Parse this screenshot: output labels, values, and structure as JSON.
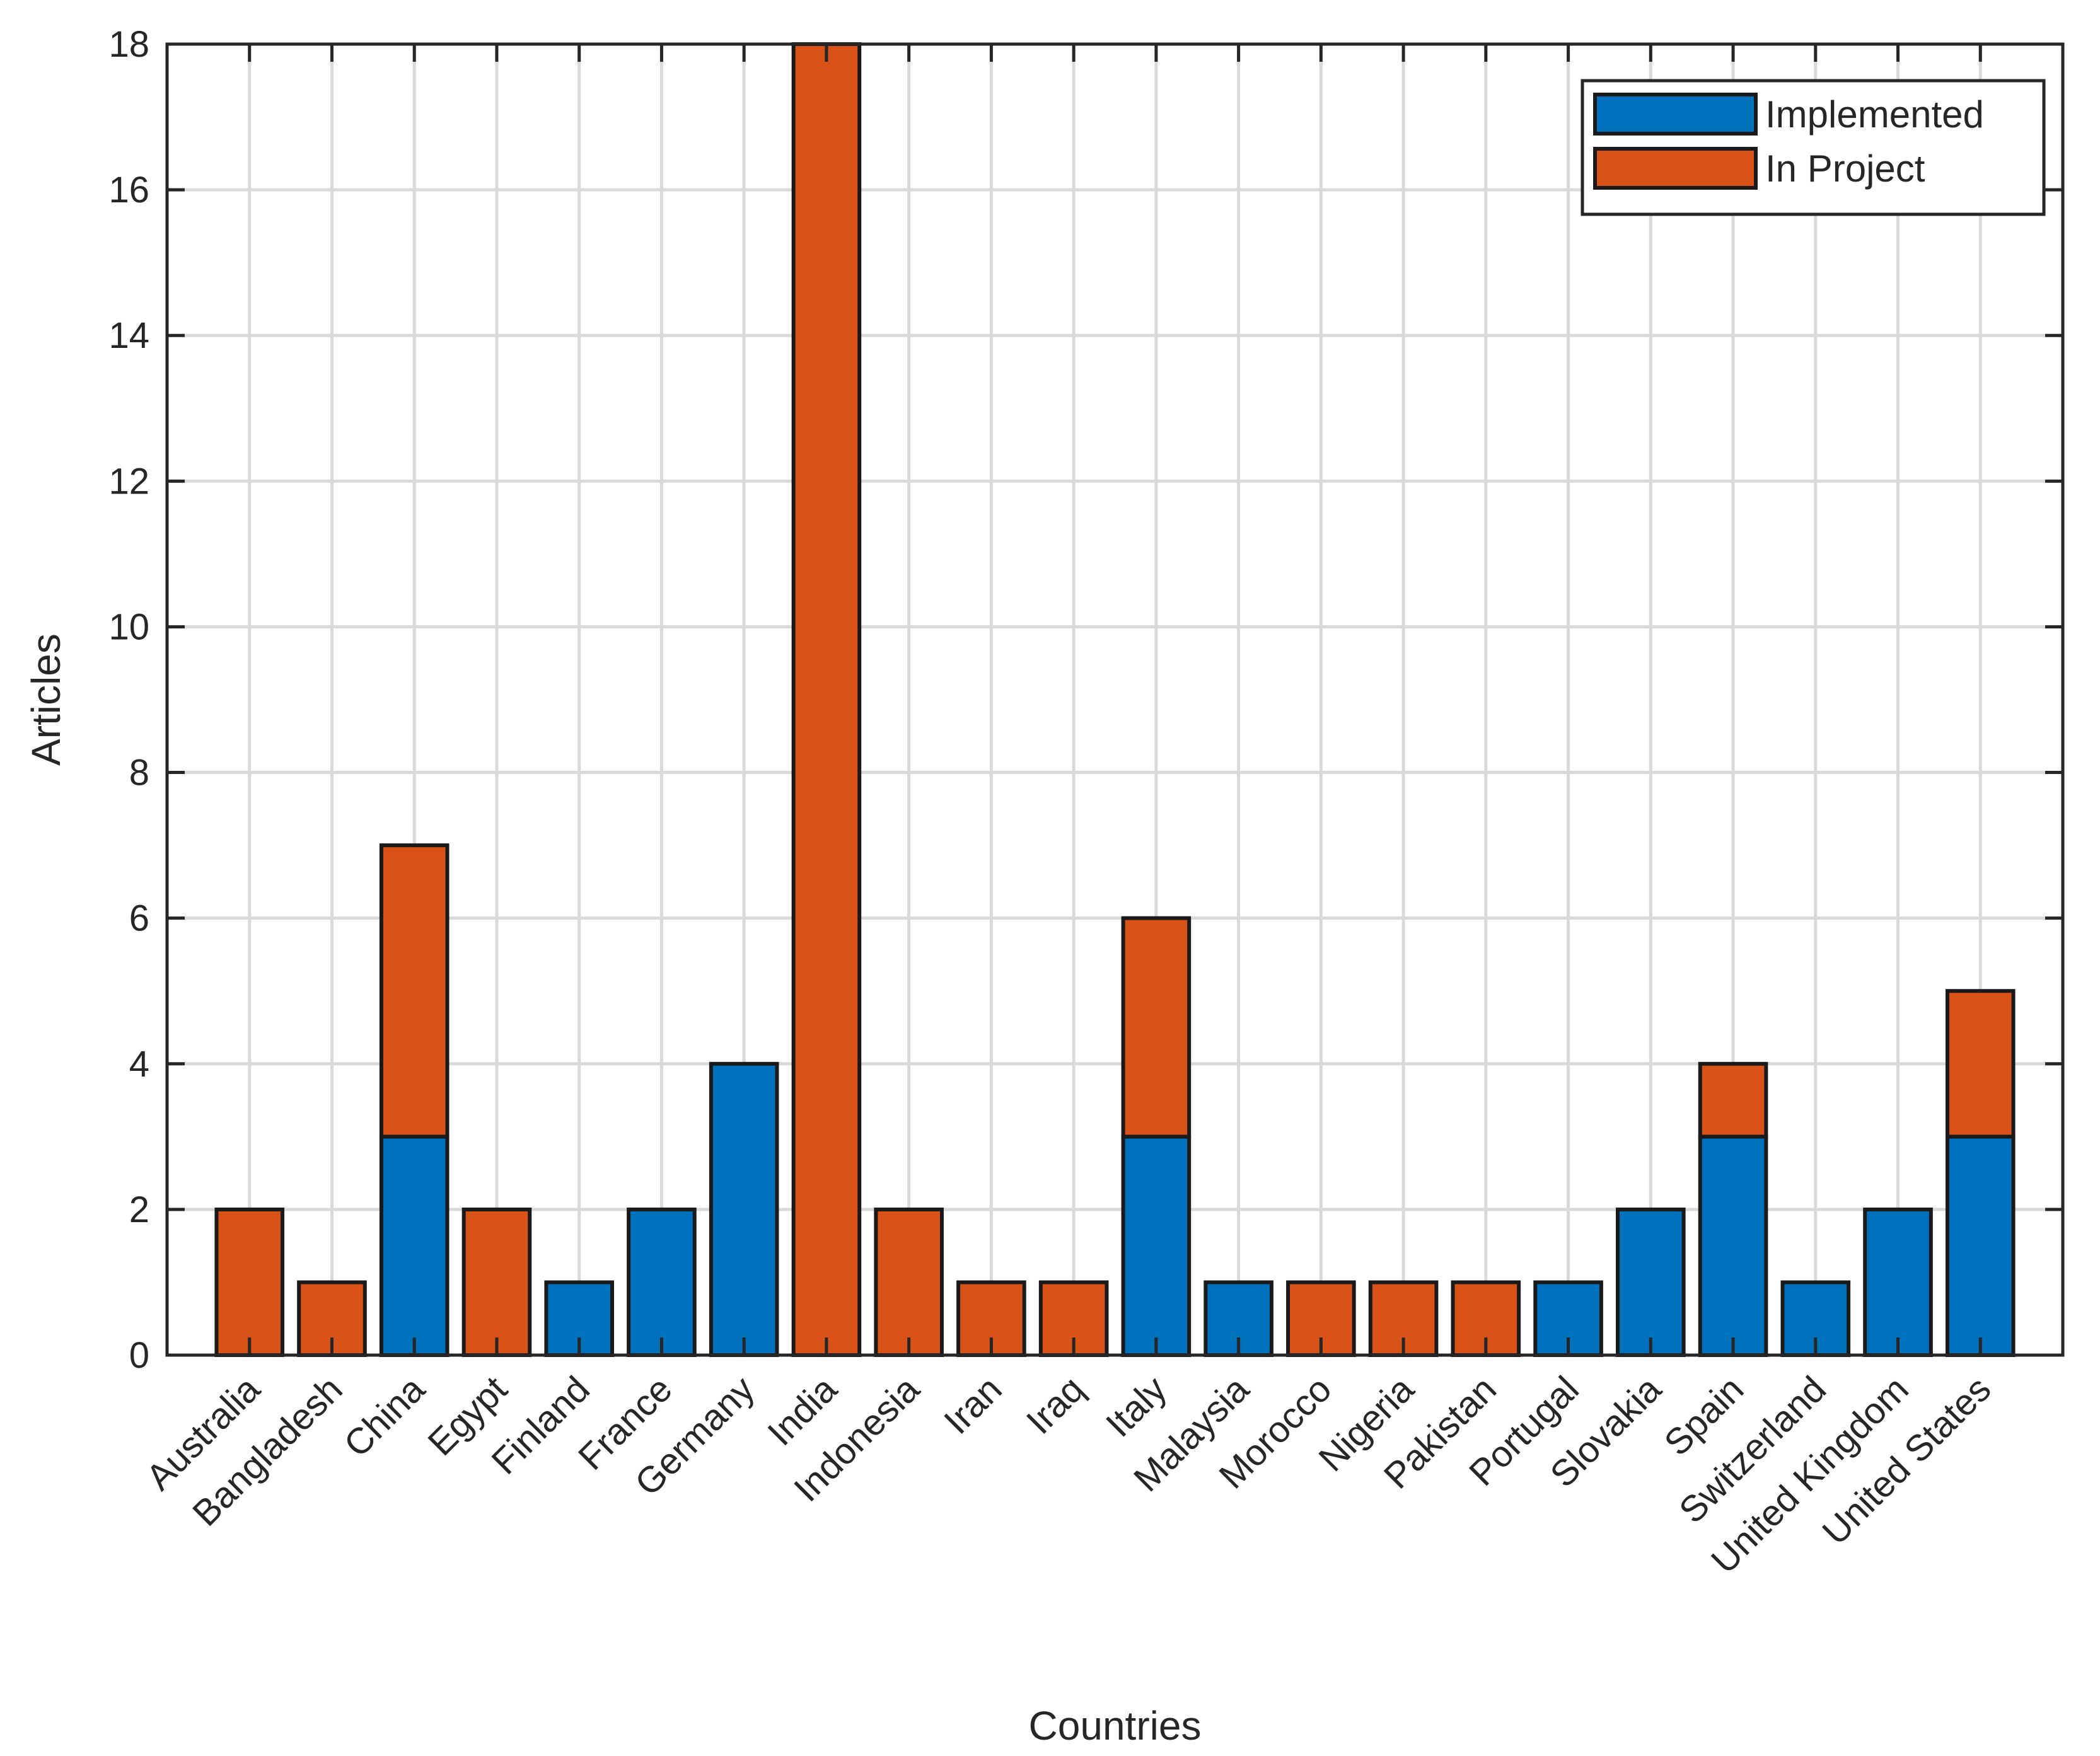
{
  "chart_data": {
    "type": "bar",
    "stacked": true,
    "categories": [
      "Australia",
      "Bangladesh",
      "China",
      "Egypt",
      "Finland",
      "France",
      "Germany",
      "India",
      "Indonesia",
      "Iran",
      "Iraq",
      "Italy",
      "Malaysia",
      "Morocco",
      "Nigeria",
      "Pakistan",
      "Portugal",
      "Slovakia",
      "Spain",
      "Switzerland",
      "United Kingdom",
      "United States"
    ],
    "series": [
      {
        "name": "Implemented",
        "color": "#0072BD",
        "values": [
          0,
          0,
          3,
          0,
          1,
          2,
          4,
          0,
          0,
          0,
          0,
          3,
          1,
          0,
          0,
          0,
          1,
          2,
          3,
          1,
          2,
          3
        ]
      },
      {
        "name": "In Project",
        "color": "#D95319",
        "values": [
          2,
          1,
          4,
          2,
          0,
          0,
          0,
          18,
          2,
          1,
          1,
          3,
          0,
          1,
          1,
          1,
          0,
          0,
          1,
          0,
          0,
          2
        ]
      }
    ],
    "xlabel": "Countries",
    "ylabel": "Articles",
    "ylim": [
      0,
      18
    ],
    "yticks": [
      "0",
      "2",
      "4",
      "6",
      "8",
      "10",
      "12",
      "14",
      "16",
      "18"
    ],
    "grid": true,
    "legend_position": "top-right"
  }
}
